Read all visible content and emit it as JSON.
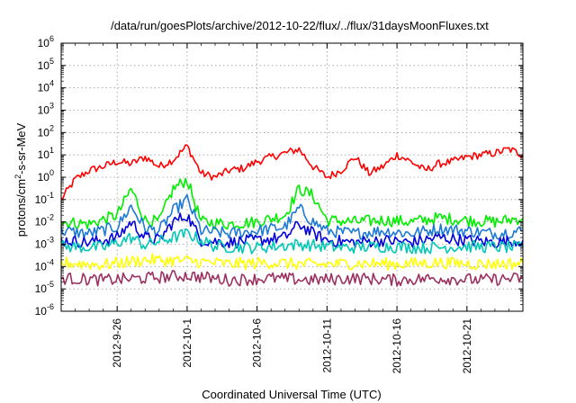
{
  "chart_data": {
    "type": "line",
    "title": "/data/run/goesPlots/archive/2012-10-22/flux/../flux/31daysMoonFluxes.txt",
    "xlabel": "Coordinated Universal Time (UTC)",
    "ylabel": "protons/cm²-s-sr-MeV",
    "ylabel_parts": {
      "prefix": "protons/cm",
      "sup": "2",
      "suffix": "-s-sr-MeV"
    },
    "x_type": "date",
    "xlim": [
      "2012-09-22",
      "2012-10-25"
    ],
    "ylim": [
      1e-06,
      1000000.0
    ],
    "y_scale": "log",
    "grid": true,
    "x_ticks": [
      "2012-9-26",
      "2012-10-1",
      "2012-10-6",
      "2012-10-11",
      "2012-10-16",
      "2012-10-21"
    ],
    "x_tick_dates": [
      "2012-09-26",
      "2012-10-01",
      "2012-10-06",
      "2012-10-11",
      "2012-10-16",
      "2012-10-21"
    ],
    "y_ticks": [
      {
        "base": "10",
        "exp": "-6"
      },
      {
        "base": "10",
        "exp": "-5"
      },
      {
        "base": "10",
        "exp": "-4"
      },
      {
        "base": "10",
        "exp": "-3"
      },
      {
        "base": "10",
        "exp": "-2"
      },
      {
        "base": "10",
        "exp": "-1"
      },
      {
        "base": "10",
        "exp": "0"
      },
      {
        "base": "10",
        "exp": "1"
      },
      {
        "base": "10",
        "exp": "2"
      },
      {
        "base": "10",
        "exp": "3"
      },
      {
        "base": "10",
        "exp": "4"
      },
      {
        "base": "10",
        "exp": "5"
      },
      {
        "base": "10",
        "exp": "6"
      }
    ],
    "y_tick_values": [
      1e-06,
      1e-05,
      0.0001,
      0.001,
      0.01,
      0.1,
      1,
      10,
      100,
      1000,
      10000,
      100000,
      1000000
    ],
    "series": [
      {
        "color": "#ff0000",
        "x": [
          "2012-09-22",
          "2012-09-23",
          "2012-09-24",
          "2012-09-25",
          "2012-09-26",
          "2012-09-27",
          "2012-09-28",
          "2012-09-29",
          "2012-09-30",
          "2012-10-01",
          "2012-10-02",
          "2012-10-03",
          "2012-10-04",
          "2012-10-05",
          "2012-10-06",
          "2012-10-07",
          "2012-10-08",
          "2012-10-09",
          "2012-10-10",
          "2012-10-11",
          "2012-10-12",
          "2012-10-13",
          "2012-10-14",
          "2012-10-15",
          "2012-10-16",
          "2012-10-17",
          "2012-10-18",
          "2012-10-19",
          "2012-10-20",
          "2012-10-21",
          "2012-10-22",
          "2012-10-23",
          "2012-10-24",
          "2012-10-25"
        ],
        "values": [
          0.1,
          0.8,
          2,
          3,
          5,
          4,
          8,
          3,
          6,
          25,
          1.5,
          1,
          2,
          2.5,
          5,
          8,
          12,
          18,
          3,
          1,
          2,
          8,
          1.5,
          3,
          10,
          5,
          2,
          4,
          5,
          8,
          10,
          12,
          18,
          10
        ]
      },
      {
        "color": "#00ee00",
        "x": [
          "2012-09-22",
          "2012-09-24",
          "2012-09-26",
          "2012-09-27",
          "2012-09-28",
          "2012-09-29",
          "2012-09-30",
          "2012-10-01",
          "2012-10-02",
          "2012-10-04",
          "2012-10-06",
          "2012-10-08",
          "2012-10-09",
          "2012-10-10",
          "2012-10-11",
          "2012-10-13",
          "2012-10-15",
          "2012-10-17",
          "2012-10-19",
          "2012-10-21",
          "2012-10-23",
          "2012-10-25"
        ],
        "values": [
          0.01,
          0.008,
          0.02,
          0.3,
          0.012,
          0.01,
          0.3,
          0.8,
          0.01,
          0.008,
          0.01,
          0.02,
          0.3,
          0.15,
          0.012,
          0.01,
          0.012,
          0.01,
          0.015,
          0.012,
          0.01,
          0.015
        ]
      },
      {
        "color": "#1c7ad6",
        "x": [
          "2012-09-22",
          "2012-09-24",
          "2012-09-26",
          "2012-09-27",
          "2012-09-28",
          "2012-09-29",
          "2012-09-30",
          "2012-10-01",
          "2012-10-02",
          "2012-10-04",
          "2012-10-06",
          "2012-10-08",
          "2012-10-09",
          "2012-10-10",
          "2012-10-11",
          "2012-10-13",
          "2012-10-15",
          "2012-10-17",
          "2012-10-19",
          "2012-10-21",
          "2012-10-23",
          "2012-10-25"
        ],
        "values": [
          0.004,
          0.003,
          0.006,
          0.05,
          0.005,
          0.004,
          0.03,
          0.1,
          0.004,
          0.003,
          0.004,
          0.006,
          0.04,
          0.01,
          0.004,
          0.003,
          0.004,
          0.003,
          0.005,
          0.004,
          0.003,
          0.004
        ]
      },
      {
        "color": "#0000dd",
        "x": [
          "2012-09-22",
          "2012-09-24",
          "2012-09-26",
          "2012-09-27",
          "2012-09-28",
          "2012-09-29",
          "2012-09-30",
          "2012-10-01",
          "2012-10-02",
          "2012-10-04",
          "2012-10-06",
          "2012-10-08",
          "2012-10-09",
          "2012-10-10",
          "2012-10-11",
          "2012-10-13",
          "2012-10-15",
          "2012-10-17",
          "2012-10-19",
          "2012-10-21",
          "2012-10-23",
          "2012-10-25"
        ],
        "values": [
          0.0015,
          0.0012,
          0.002,
          0.01,
          0.002,
          0.0015,
          0.01,
          0.02,
          0.0015,
          0.0012,
          0.0015,
          0.002,
          0.008,
          0.003,
          0.0015,
          0.0012,
          0.0015,
          0.0012,
          0.002,
          0.0015,
          0.0012,
          0.0015
        ]
      },
      {
        "color": "#00c8b4",
        "x": [
          "2012-09-22",
          "2012-09-25",
          "2012-09-27",
          "2012-09-28",
          "2012-09-30",
          "2012-10-01",
          "2012-10-03",
          "2012-10-06",
          "2012-10-09",
          "2012-10-12",
          "2012-10-15",
          "2012-10-18",
          "2012-10-21",
          "2012-10-25"
        ],
        "values": [
          0.0008,
          0.0007,
          0.002,
          0.0009,
          0.002,
          0.003,
          0.0008,
          0.0007,
          0.001,
          0.0007,
          0.0008,
          0.0007,
          0.0008,
          0.0007
        ]
      },
      {
        "color": "#ffff00",
        "x": [
          "2012-09-22",
          "2012-09-25",
          "2012-09-28",
          "2012-10-01",
          "2012-10-04",
          "2012-10-07",
          "2012-10-10",
          "2012-10-13",
          "2012-10-16",
          "2012-10-19",
          "2012-10-22",
          "2012-10-25"
        ],
        "values": [
          0.00015,
          0.00012,
          0.0002,
          0.00018,
          0.00013,
          0.00015,
          0.00012,
          0.00014,
          0.00013,
          0.00015,
          0.00013,
          0.00014
        ]
      },
      {
        "color": "#9b3060",
        "x": [
          "2012-09-22",
          "2012-09-25",
          "2012-09-28",
          "2012-10-01",
          "2012-10-04",
          "2012-10-07",
          "2012-10-10",
          "2012-10-13",
          "2012-10-16",
          "2012-10-19",
          "2012-10-22",
          "2012-10-25"
        ],
        "values": [
          3e-05,
          2.5e-05,
          3e-05,
          4e-05,
          2.5e-05,
          3e-05,
          2.5e-05,
          3e-05,
          2.5e-05,
          3e-05,
          2.5e-05,
          3e-05
        ]
      }
    ]
  }
}
